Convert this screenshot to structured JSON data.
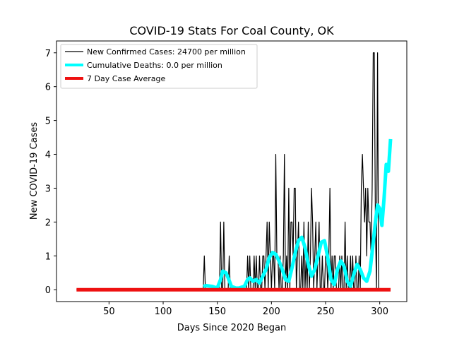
{
  "chart_data": {
    "type": "line",
    "title": "COVID-19 Stats For Coal County, OK",
    "xlabel": "Days Since 2020 Began",
    "ylabel": "New COVID-19 Cases",
    "xlim": [
      1.5,
      325
    ],
    "ylim": [
      -0.35,
      7.35
    ],
    "xticks": [
      50,
      100,
      150,
      200,
      250,
      300
    ],
    "yticks": [
      0,
      1,
      2,
      3,
      4,
      5,
      6,
      7
    ],
    "legend_position": "upper-left",
    "series": [
      {
        "name": "New Confirmed Cases: 24700 per million",
        "color": "#000000",
        "x": [
          20,
          137,
          138,
          139,
          140,
          152,
          153,
          154,
          155,
          156,
          157,
          158,
          160,
          161,
          162,
          163,
          164,
          177,
          178,
          179,
          180,
          181,
          182,
          183,
          184,
          185,
          186,
          187,
          188,
          189,
          190,
          191,
          192,
          193,
          194,
          195,
          196,
          197,
          198,
          199,
          200,
          201,
          202,
          203,
          204,
          205,
          206,
          207,
          208,
          209,
          210,
          211,
          212,
          213,
          214,
          215,
          216,
          217,
          218,
          219,
          220,
          221,
          222,
          223,
          224,
          225,
          226,
          227,
          228,
          229,
          230,
          231,
          232,
          233,
          234,
          235,
          236,
          237,
          238,
          239,
          240,
          241,
          242,
          243,
          244,
          245,
          246,
          247,
          248,
          249,
          250,
          251,
          252,
          253,
          254,
          255,
          256,
          257,
          258,
          259,
          260,
          261,
          262,
          263,
          264,
          265,
          266,
          267,
          268,
          269,
          270,
          271,
          272,
          273,
          274,
          275,
          276,
          277,
          278,
          279,
          280,
          281,
          282,
          283,
          284,
          285,
          286,
          287,
          288,
          289,
          290,
          291,
          292,
          293,
          294,
          295,
          296,
          297,
          298,
          299,
          300,
          301,
          302,
          303,
          304,
          305,
          306,
          307,
          308,
          309,
          310
        ],
        "values": [
          0,
          0,
          1,
          0,
          0,
          0,
          2,
          0,
          0,
          2,
          0,
          0,
          0,
          1,
          0,
          0,
          0,
          0,
          1,
          0,
          1,
          0,
          0,
          0,
          1,
          0,
          1,
          0,
          0,
          1,
          0,
          0,
          1,
          1,
          0,
          1,
          2,
          0,
          2,
          1,
          0,
          1,
          1,
          0,
          4,
          1,
          1,
          0,
          1,
          0,
          0,
          1,
          4,
          0,
          1,
          0,
          3,
          0,
          2,
          2,
          1,
          3,
          3,
          0,
          1,
          2,
          0,
          0,
          1,
          0,
          2,
          0,
          1,
          0,
          2,
          0,
          1,
          3,
          2,
          0,
          1,
          2,
          0,
          1,
          2,
          0,
          0,
          1,
          0,
          0,
          1,
          1,
          0,
          1,
          3,
          0,
          1,
          0,
          1,
          1,
          0,
          0,
          0,
          1,
          0,
          1,
          0,
          0,
          2,
          0,
          1,
          0,
          0,
          1,
          0,
          1,
          0,
          0,
          1,
          0,
          0,
          1,
          0,
          3,
          4,
          3,
          2,
          3,
          1,
          3,
          2,
          2,
          1,
          3,
          7,
          7,
          2,
          0,
          7,
          0,
          0,
          0,
          0,
          0,
          0,
          0,
          0,
          0,
          0,
          0,
          0
        ]
      },
      {
        "name": "Cumulative Deaths: 0.0 per million",
        "color": "#00ffff",
        "x": [
          137,
          140,
          145,
          150,
          153,
          155,
          158,
          160,
          163,
          167,
          170,
          175,
          178,
          180,
          183,
          186,
          189,
          192,
          195,
          198,
          201,
          204,
          207,
          210,
          213,
          216,
          219,
          222,
          225,
          228,
          231,
          234,
          237,
          240,
          243,
          246,
          249,
          252,
          255,
          258,
          261,
          264,
          267,
          270,
          273,
          276,
          279,
          282,
          285,
          288,
          291,
          294,
          296,
          298,
          300,
          302,
          304,
          306,
          308,
          310
        ],
        "values": [
          0.1,
          0.12,
          0.1,
          0.05,
          0.3,
          0.55,
          0.5,
          0.35,
          0.1,
          0.05,
          0.05,
          0.1,
          0.3,
          0.35,
          0.25,
          0.3,
          0.2,
          0.4,
          0.6,
          0.95,
          1.1,
          1.05,
          0.85,
          0.6,
          0.3,
          0.25,
          0.65,
          1.1,
          1.45,
          1.55,
          1.25,
          0.75,
          0.4,
          0.6,
          1.0,
          1.4,
          1.45,
          0.95,
          0.3,
          0.15,
          0.6,
          0.85,
          0.7,
          0.25,
          0.1,
          0.45,
          0.75,
          0.6,
          0.35,
          0.25,
          0.55,
          1.4,
          2.0,
          2.5,
          2.4,
          1.9,
          2.7,
          3.7,
          3.5,
          4.45
        ]
      },
      {
        "name": "7 Day Case Average",
        "color": "#ee1111",
        "x": [
          20,
          310
        ],
        "values": [
          0,
          0
        ]
      }
    ]
  }
}
